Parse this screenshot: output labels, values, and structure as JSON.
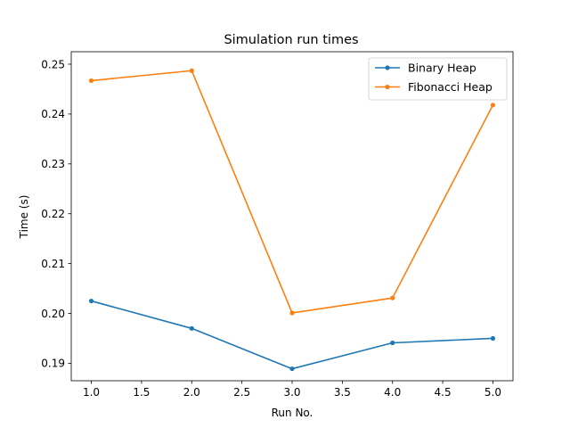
{
  "chart_data": {
    "type": "line",
    "title": "Simulation run times",
    "xlabel": "Run No.",
    "ylabel": "Time (s)",
    "xlim": [
      0.8,
      5.2
    ],
    "ylim": [
      0.1865,
      0.2525
    ],
    "xticks": [
      1.0,
      1.5,
      2.0,
      2.5,
      3.0,
      3.5,
      4.0,
      4.5,
      5.0
    ],
    "xtick_labels": [
      "1.0",
      "1.5",
      "2.0",
      "2.5",
      "3.0",
      "3.5",
      "4.0",
      "4.5",
      "5.0"
    ],
    "yticks": [
      0.19,
      0.2,
      0.21,
      0.22,
      0.23,
      0.24,
      0.25
    ],
    "ytick_labels": [
      "0.19",
      "0.20",
      "0.21",
      "0.22",
      "0.23",
      "0.24",
      "0.25"
    ],
    "grid": false,
    "legend_position": "top-right",
    "x": [
      1,
      2,
      3,
      4,
      5
    ],
    "series": [
      {
        "name": "Binary Heap",
        "color": "#1f77b4",
        "marker": "circle",
        "values": [
          0.2025,
          0.197,
          0.1889,
          0.1941,
          0.195
        ]
      },
      {
        "name": "Fibonacci Heap",
        "color": "#ff7f0e",
        "marker": "circle",
        "values": [
          0.2467,
          0.2487,
          0.2001,
          0.2031,
          0.2418
        ]
      }
    ]
  }
}
